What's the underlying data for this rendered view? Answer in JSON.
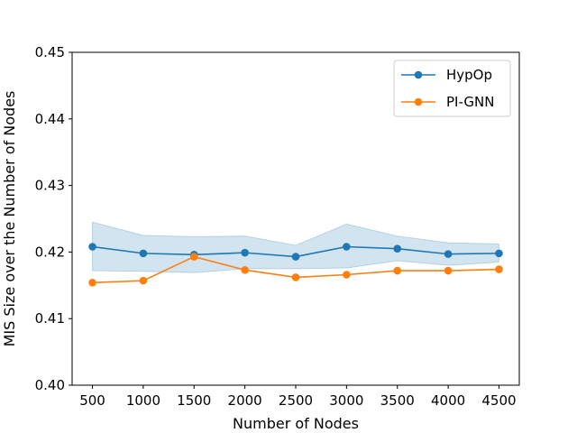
{
  "chart_data": {
    "type": "line",
    "title": "",
    "xlabel": "Number of Nodes",
    "ylabel": "MIS Size over the Number of Nodes",
    "x": [
      500,
      1000,
      1500,
      2000,
      2500,
      3000,
      3500,
      4000,
      4500
    ],
    "xlim": [
      300,
      4700
    ],
    "ylim": [
      0.4,
      0.45
    ],
    "x_ticks": [
      "500",
      "1000",
      "1500",
      "2000",
      "2500",
      "3000",
      "3500",
      "4000",
      "4500"
    ],
    "y_ticks": [
      "0.40",
      "0.41",
      "0.42",
      "0.43",
      "0.44",
      "0.45"
    ],
    "grid": false,
    "legend_position": "top-right",
    "series": [
      {
        "name": "HypOp",
        "color": "#1f77b4",
        "marker": "circle",
        "values": [
          0.4208,
          0.4198,
          0.4196,
          0.4199,
          0.4193,
          0.4208,
          0.4205,
          0.4197,
          0.4198
        ],
        "band_upper": [
          0.4245,
          0.4225,
          0.4223,
          0.4224,
          0.421,
          0.4242,
          0.4224,
          0.4214,
          0.4212
        ],
        "band_lower": [
          0.4172,
          0.4171,
          0.4169,
          0.4175,
          0.4175,
          0.4176,
          0.4187,
          0.418,
          0.4185
        ]
      },
      {
        "name": "PI-GNN",
        "color": "#ff7f0e",
        "marker": "circle",
        "values": [
          0.4154,
          0.4157,
          0.4193,
          0.4173,
          0.4162,
          0.4166,
          0.4172,
          0.4172,
          0.4174
        ]
      }
    ]
  }
}
